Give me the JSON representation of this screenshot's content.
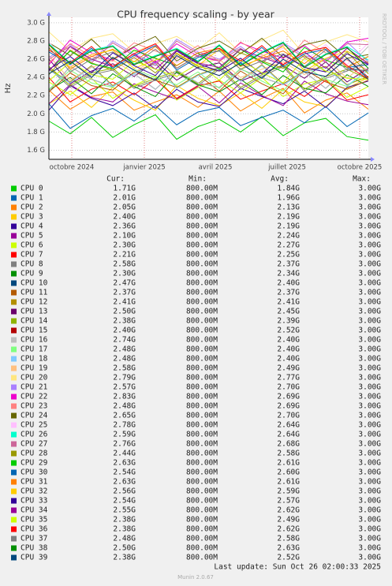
{
  "chart_data": {
    "type": "line",
    "title": "CPU frequency scaling - by year",
    "y_label": "Hz",
    "xlim": [
      -29,
      376
    ],
    "xticks": [
      {
        "value": 0,
        "label": "octobre 2024"
      },
      {
        "value": 92,
        "label": "janvier 2025"
      },
      {
        "value": 182,
        "label": "avril 2025"
      },
      {
        "value": 273,
        "label": "juillet 2025"
      },
      {
        "value": 365,
        "label": "octobre 2025"
      }
    ],
    "ylim": [
      1.5,
      3.06
    ],
    "yticks": [
      {
        "value": 1.6,
        "label": "1.6 G"
      },
      {
        "value": 1.8,
        "label": "1.8 G"
      },
      {
        "value": 2.0,
        "label": "2.0 G"
      },
      {
        "value": 2.2,
        "label": "2.2 G"
      },
      {
        "value": 2.4,
        "label": "2.4 G"
      },
      {
        "value": 2.6,
        "label": "2.6 G"
      },
      {
        "value": 2.8,
        "label": "2.8 G"
      },
      {
        "value": 3.0,
        "label": "3.0 G"
      }
    ],
    "grid": true,
    "x": [
      -29,
      -2,
      25,
      52,
      79,
      106,
      133,
      160,
      187,
      214,
      241,
      268,
      295,
      322,
      349,
      376
    ],
    "legend_headers": [
      "Cur:",
      "Min:",
      "Avg:",
      "Max:"
    ],
    "series": [
      {
        "name": "CPU 0",
        "color": "#00cc00",
        "cur": "1.71G",
        "min": "800.00M",
        "avg": "1.84G",
        "max": "3.00G",
        "values": [
          1.92,
          1.78,
          1.96,
          1.74,
          1.88,
          1.99,
          1.72,
          1.86,
          1.94,
          1.8,
          1.97,
          1.76,
          1.9,
          1.95,
          1.75,
          1.71
        ]
      },
      {
        "name": "CPU 1",
        "color": "#0066b3",
        "cur": "2.01G",
        "min": "800.00M",
        "avg": "1.96G",
        "max": "3.00G",
        "values": [
          2.11,
          1.84,
          1.98,
          2.06,
          1.92,
          2.09,
          1.88,
          2.02,
          2.07,
          1.87,
          1.96,
          2.04,
          1.9,
          2.08,
          1.86,
          2.01
        ]
      },
      {
        "name": "CPU 2",
        "color": "#ff8000",
        "cur": "2.05G",
        "min": "800.00M",
        "avg": "2.13G",
        "max": "3.00G",
        "values": [
          2.26,
          2.05,
          2.19,
          2.24,
          2.04,
          2.13,
          2.21,
          2.07,
          2.25,
          2.03,
          2.17,
          2.28,
          2.01,
          2.15,
          2.23,
          2.05
        ]
      },
      {
        "name": "CPU 3",
        "color": "#ffcc00",
        "cur": "2.40G",
        "min": "800.00M",
        "avg": "2.19G",
        "max": "3.00G",
        "values": [
          2.11,
          2.25,
          2.07,
          2.29,
          2.15,
          2.04,
          2.31,
          2.17,
          2.09,
          2.23,
          2.06,
          2.27,
          2.13,
          2.08,
          2.28,
          2.4
        ]
      },
      {
        "name": "CPU 4",
        "color": "#330099",
        "cur": "2.36G",
        "min": "800.00M",
        "avg": "2.19G",
        "max": "3.00G",
        "values": [
          2.04,
          2.31,
          2.17,
          2.09,
          2.23,
          2.06,
          2.27,
          2.13,
          2.08,
          2.28,
          2.19,
          2.11,
          2.25,
          2.07,
          2.29,
          2.36
        ]
      },
      {
        "name": "CPU 5",
        "color": "#990099",
        "cur": "2.10G",
        "min": "800.00M",
        "avg": "2.24G",
        "max": "3.00G",
        "values": [
          2.11,
          2.32,
          2.18,
          2.13,
          2.33,
          2.24,
          2.16,
          2.3,
          2.12,
          2.34,
          2.2,
          2.09,
          2.36,
          2.22,
          2.14,
          2.1
        ]
      },
      {
        "name": "CPU 6",
        "color": "#ccff00",
        "cur": "2.30G",
        "min": "800.00M",
        "avg": "2.27G",
        "max": "3.00G",
        "values": [
          2.35,
          2.21,
          2.39,
          2.17,
          2.31,
          2.42,
          2.15,
          2.29,
          2.37,
          2.23,
          2.4,
          2.19,
          2.33,
          2.38,
          2.18,
          2.3
        ]
      },
      {
        "name": "CPU 7",
        "color": "#ff0000",
        "cur": "2.21G",
        "min": "800.00M",
        "avg": "2.25G",
        "max": "3.00G",
        "values": [
          2.4,
          2.13,
          2.27,
          2.35,
          2.21,
          2.38,
          2.17,
          2.31,
          2.36,
          2.16,
          2.25,
          2.33,
          2.19,
          2.37,
          2.15,
          2.21
        ]
      },
      {
        "name": "CPU 8",
        "color": "#808080",
        "cur": "2.58G",
        "min": "800.00M",
        "avg": "2.37G",
        "max": "3.00G",
        "values": [
          2.5,
          2.29,
          2.43,
          2.48,
          2.28,
          2.37,
          2.45,
          2.31,
          2.49,
          2.27,
          2.41,
          2.52,
          2.25,
          2.39,
          2.47,
          2.58
        ]
      },
      {
        "name": "CPU 9",
        "color": "#008f00",
        "cur": "2.30G",
        "min": "800.00M",
        "avg": "2.34G",
        "max": "3.00G",
        "values": [
          2.26,
          2.4,
          2.22,
          2.44,
          2.3,
          2.19,
          2.46,
          2.32,
          2.24,
          2.38,
          2.21,
          2.42,
          2.28,
          2.23,
          2.43,
          2.3
        ]
      },
      {
        "name": "CPU 10",
        "color": "#00487d",
        "cur": "2.47G",
        "min": "800.00M",
        "avg": "2.40G",
        "max": "3.00G",
        "values": [
          2.25,
          2.52,
          2.38,
          2.3,
          2.44,
          2.27,
          2.48,
          2.34,
          2.29,
          2.49,
          2.4,
          2.32,
          2.46,
          2.28,
          2.5,
          2.47
        ]
      },
      {
        "name": "CPU 11",
        "color": "#b35a00",
        "cur": "2.37G",
        "min": "800.00M",
        "avg": "2.37G",
        "max": "3.00G",
        "values": [
          2.24,
          2.45,
          2.31,
          2.26,
          2.46,
          2.37,
          2.29,
          2.43,
          2.25,
          2.47,
          2.33,
          2.22,
          2.49,
          2.35,
          2.27,
          2.37
        ]
      },
      {
        "name": "CPU 12",
        "color": "#b38f00",
        "cur": "2.41G",
        "min": "800.00M",
        "avg": "2.41G",
        "max": "3.00G",
        "values": [
          2.49,
          2.35,
          2.53,
          2.31,
          2.45,
          2.56,
          2.29,
          2.43,
          2.51,
          2.37,
          2.54,
          2.33,
          2.47,
          2.52,
          2.32,
          2.41
        ]
      },
      {
        "name": "CPU 13",
        "color": "#6b006b",
        "cur": "2.50G",
        "min": "800.00M",
        "avg": "2.45G",
        "max": "3.00G",
        "values": [
          2.6,
          2.33,
          2.47,
          2.55,
          2.41,
          2.58,
          2.37,
          2.51,
          2.56,
          2.36,
          2.45,
          2.53,
          2.39,
          2.57,
          2.35,
          2.5
        ]
      },
      {
        "name": "CPU 14",
        "color": "#8fb300",
        "cur": "2.38G",
        "min": "800.00M",
        "avg": "2.39G",
        "max": "3.00G",
        "values": [
          2.52,
          2.31,
          2.45,
          2.5,
          2.3,
          2.39,
          2.47,
          2.33,
          2.51,
          2.29,
          2.43,
          2.54,
          2.27,
          2.41,
          2.49,
          2.38
        ]
      },
      {
        "name": "CPU 15",
        "color": "#b30000",
        "cur": "2.40G",
        "min": "800.00M",
        "avg": "2.52G",
        "max": "3.00G",
        "values": [
          2.44,
          2.58,
          2.4,
          2.62,
          2.48,
          2.37,
          2.64,
          2.5,
          2.42,
          2.56,
          2.39,
          2.6,
          2.46,
          2.41,
          2.61,
          2.4
        ]
      },
      {
        "name": "CPU 16",
        "color": "#bebebe",
        "cur": "2.74G",
        "min": "800.00M",
        "avg": "2.40G",
        "max": "3.00G",
        "values": [
          2.25,
          2.52,
          2.38,
          2.3,
          2.44,
          2.27,
          2.48,
          2.34,
          2.29,
          2.49,
          2.4,
          2.32,
          2.46,
          2.28,
          2.5,
          2.74
        ]
      },
      {
        "name": "CPU 17",
        "color": "#80ff80",
        "cur": "2.48G",
        "min": "800.00M",
        "avg": "2.40G",
        "max": "3.00G",
        "values": [
          2.27,
          2.48,
          2.34,
          2.29,
          2.49,
          2.4,
          2.32,
          2.46,
          2.28,
          2.5,
          2.36,
          2.25,
          2.52,
          2.38,
          2.3,
          2.48
        ]
      },
      {
        "name": "CPU 18",
        "color": "#80c9ff",
        "cur": "2.48G",
        "min": "800.00M",
        "avg": "2.40G",
        "max": "3.00G",
        "values": [
          2.48,
          2.34,
          2.52,
          2.3,
          2.44,
          2.55,
          2.28,
          2.42,
          2.5,
          2.36,
          2.53,
          2.32,
          2.46,
          2.51,
          2.31,
          2.48
        ]
      },
      {
        "name": "CPU 19",
        "color": "#ffc080",
        "cur": "2.58G",
        "min": "800.00M",
        "avg": "2.49G",
        "max": "3.00G",
        "values": [
          2.64,
          2.37,
          2.51,
          2.59,
          2.45,
          2.62,
          2.41,
          2.55,
          2.6,
          2.4,
          2.49,
          2.57,
          2.43,
          2.61,
          2.39,
          2.58
        ]
      },
      {
        "name": "CPU 20",
        "color": "#ffe680",
        "cur": "2.79G",
        "min": "800.00M",
        "avg": "2.77G",
        "max": "3.00G",
        "values": [
          2.9,
          2.69,
          2.83,
          2.88,
          2.68,
          2.77,
          2.85,
          2.71,
          2.89,
          2.67,
          2.81,
          2.92,
          2.65,
          2.79,
          2.87,
          2.79
        ]
      },
      {
        "name": "CPU 21",
        "color": "#aa80ff",
        "cur": "2.57G",
        "min": "800.00M",
        "avg": "2.70G",
        "max": "3.00G",
        "values": [
          2.62,
          2.76,
          2.58,
          2.8,
          2.66,
          2.55,
          2.82,
          2.68,
          2.6,
          2.74,
          2.57,
          2.78,
          2.64,
          2.59,
          2.79,
          2.57
        ]
      },
      {
        "name": "CPU 22",
        "color": "#ee00cc",
        "cur": "2.83G",
        "min": "800.00M",
        "avg": "2.69G",
        "max": "3.00G",
        "values": [
          2.54,
          2.81,
          2.67,
          2.59,
          2.73,
          2.56,
          2.77,
          2.63,
          2.58,
          2.78,
          2.69,
          2.61,
          2.75,
          2.57,
          2.79,
          2.83
        ]
      },
      {
        "name": "CPU 23",
        "color": "#ff8080",
        "cur": "2.48G",
        "min": "800.00M",
        "avg": "2.69G",
        "max": "3.00G",
        "values": [
          2.56,
          2.77,
          2.63,
          2.58,
          2.78,
          2.69,
          2.61,
          2.75,
          2.57,
          2.79,
          2.65,
          2.54,
          2.81,
          2.67,
          2.59,
          2.48
        ]
      },
      {
        "name": "CPU 24",
        "color": "#666600",
        "cur": "2.65G",
        "min": "800.00M",
        "avg": "2.70G",
        "max": "3.00G",
        "values": [
          2.78,
          2.64,
          2.82,
          2.6,
          2.74,
          2.85,
          2.58,
          2.72,
          2.8,
          2.66,
          2.83,
          2.62,
          2.76,
          2.81,
          2.61,
          2.65
        ]
      },
      {
        "name": "CPU 25",
        "color": "#ffbfff",
        "cur": "2.78G",
        "min": "800.00M",
        "avg": "2.64G",
        "max": "3.00G",
        "values": [
          2.79,
          2.52,
          2.66,
          2.74,
          2.6,
          2.77,
          2.56,
          2.7,
          2.75,
          2.55,
          2.64,
          2.72,
          2.58,
          2.76,
          2.54,
          2.78
        ]
      },
      {
        "name": "CPU 26",
        "color": "#00ffcc",
        "cur": "2.59G",
        "min": "800.00M",
        "avg": "2.64G",
        "max": "3.00G",
        "values": [
          2.77,
          2.56,
          2.7,
          2.75,
          2.55,
          2.64,
          2.72,
          2.58,
          2.76,
          2.54,
          2.68,
          2.79,
          2.52,
          2.66,
          2.74,
          2.59
        ]
      },
      {
        "name": "CPU 27",
        "color": "#cc6699",
        "cur": "2.76G",
        "min": "800.00M",
        "avg": "2.68G",
        "max": "3.00G",
        "values": [
          2.6,
          2.74,
          2.56,
          2.78,
          2.64,
          2.53,
          2.8,
          2.66,
          2.58,
          2.72,
          2.55,
          2.76,
          2.62,
          2.57,
          2.77,
          2.76
        ]
      },
      {
        "name": "CPU 28",
        "color": "#999900",
        "cur": "2.44G",
        "min": "800.00M",
        "avg": "2.58G",
        "max": "3.00G",
        "values": [
          2.43,
          2.7,
          2.56,
          2.48,
          2.62,
          2.45,
          2.66,
          2.52,
          2.47,
          2.67,
          2.58,
          2.5,
          2.64,
          2.46,
          2.68,
          2.44
        ]
      },
      {
        "name": "CPU 29",
        "color": "#00cc00",
        "cur": "2.63G",
        "min": "800.00M",
        "avg": "2.61G",
        "max": "3.00G",
        "values": [
          2.48,
          2.69,
          2.55,
          2.5,
          2.7,
          2.61,
          2.53,
          2.67,
          2.49,
          2.71,
          2.57,
          2.46,
          2.73,
          2.59,
          2.51,
          2.63
        ]
      },
      {
        "name": "CPU 30",
        "color": "#0066b3",
        "cur": "2.54G",
        "min": "800.00M",
        "avg": "2.60G",
        "max": "3.00G",
        "values": [
          2.68,
          2.54,
          2.72,
          2.5,
          2.64,
          2.75,
          2.48,
          2.62,
          2.7,
          2.56,
          2.73,
          2.52,
          2.66,
          2.71,
          2.51,
          2.54
        ]
      },
      {
        "name": "CPU 31",
        "color": "#ff8000",
        "cur": "2.63G",
        "min": "800.00M",
        "avg": "2.61G",
        "max": "3.00G",
        "values": [
          2.76,
          2.49,
          2.63,
          2.71,
          2.57,
          2.74,
          2.53,
          2.67,
          2.72,
          2.52,
          2.61,
          2.69,
          2.55,
          2.73,
          2.51,
          2.63
        ]
      },
      {
        "name": "CPU 32",
        "color": "#ffcc00",
        "cur": "2.56G",
        "min": "800.00M",
        "avg": "2.59G",
        "max": "3.00G",
        "values": [
          2.72,
          2.51,
          2.65,
          2.7,
          2.5,
          2.59,
          2.67,
          2.53,
          2.71,
          2.49,
          2.63,
          2.74,
          2.47,
          2.61,
          2.69,
          2.56
        ]
      },
      {
        "name": "CPU 33",
        "color": "#330099",
        "cur": "2.54G",
        "min": "800.00M",
        "avg": "2.57G",
        "max": "3.00G",
        "values": [
          2.49,
          2.63,
          2.45,
          2.67,
          2.53,
          2.42,
          2.69,
          2.55,
          2.47,
          2.61,
          2.44,
          2.65,
          2.51,
          2.46,
          2.66,
          2.54
        ]
      },
      {
        "name": "CPU 34",
        "color": "#990099",
        "cur": "2.55G",
        "min": "800.00M",
        "avg": "2.62G",
        "max": "3.00G",
        "values": [
          2.47,
          2.74,
          2.6,
          2.52,
          2.66,
          2.49,
          2.7,
          2.56,
          2.51,
          2.71,
          2.62,
          2.54,
          2.68,
          2.5,
          2.72,
          2.55
        ]
      },
      {
        "name": "CPU 35",
        "color": "#ccff00",
        "cur": "2.38G",
        "min": "800.00M",
        "avg": "2.49G",
        "max": "3.00G",
        "values": [
          2.36,
          2.57,
          2.43,
          2.38,
          2.58,
          2.49,
          2.41,
          2.55,
          2.37,
          2.59,
          2.45,
          2.34,
          2.61,
          2.47,
          2.39,
          2.38
        ]
      },
      {
        "name": "CPU 36",
        "color": "#ff0000",
        "cur": "2.38G",
        "min": "800.00M",
        "avg": "2.62G",
        "max": "3.00G",
        "values": [
          2.7,
          2.56,
          2.74,
          2.52,
          2.66,
          2.77,
          2.5,
          2.64,
          2.72,
          2.58,
          2.75,
          2.54,
          2.68,
          2.73,
          2.53,
          2.38
        ]
      },
      {
        "name": "CPU 37",
        "color": "#808080",
        "cur": "2.48G",
        "min": "800.00M",
        "avg": "2.58G",
        "max": "3.00G",
        "values": [
          2.73,
          2.46,
          2.6,
          2.68,
          2.54,
          2.71,
          2.5,
          2.64,
          2.69,
          2.49,
          2.58,
          2.66,
          2.52,
          2.7,
          2.48,
          2.48
        ]
      },
      {
        "name": "CPU 38",
        "color": "#008f00",
        "cur": "2.50G",
        "min": "800.00M",
        "avg": "2.63G",
        "max": "3.00G",
        "values": [
          2.76,
          2.55,
          2.69,
          2.74,
          2.54,
          2.63,
          2.71,
          2.57,
          2.75,
          2.53,
          2.67,
          2.78,
          2.51,
          2.65,
          2.73,
          2.5
        ]
      },
      {
        "name": "CPU 39",
        "color": "#00487d",
        "cur": "2.38G",
        "min": "800.00M",
        "avg": "2.52G",
        "max": "3.00G",
        "values": [
          2.44,
          2.58,
          2.4,
          2.62,
          2.48,
          2.37,
          2.64,
          2.5,
          2.42,
          2.56,
          2.39,
          2.6,
          2.46,
          2.41,
          2.61,
          2.38
        ]
      }
    ],
    "last_update": "Last update: Sun Oct 26 02:00:33 2025",
    "footer": "Munin 2.0.67",
    "watermark": "RRDTOOL / TOBI OETIKER"
  }
}
